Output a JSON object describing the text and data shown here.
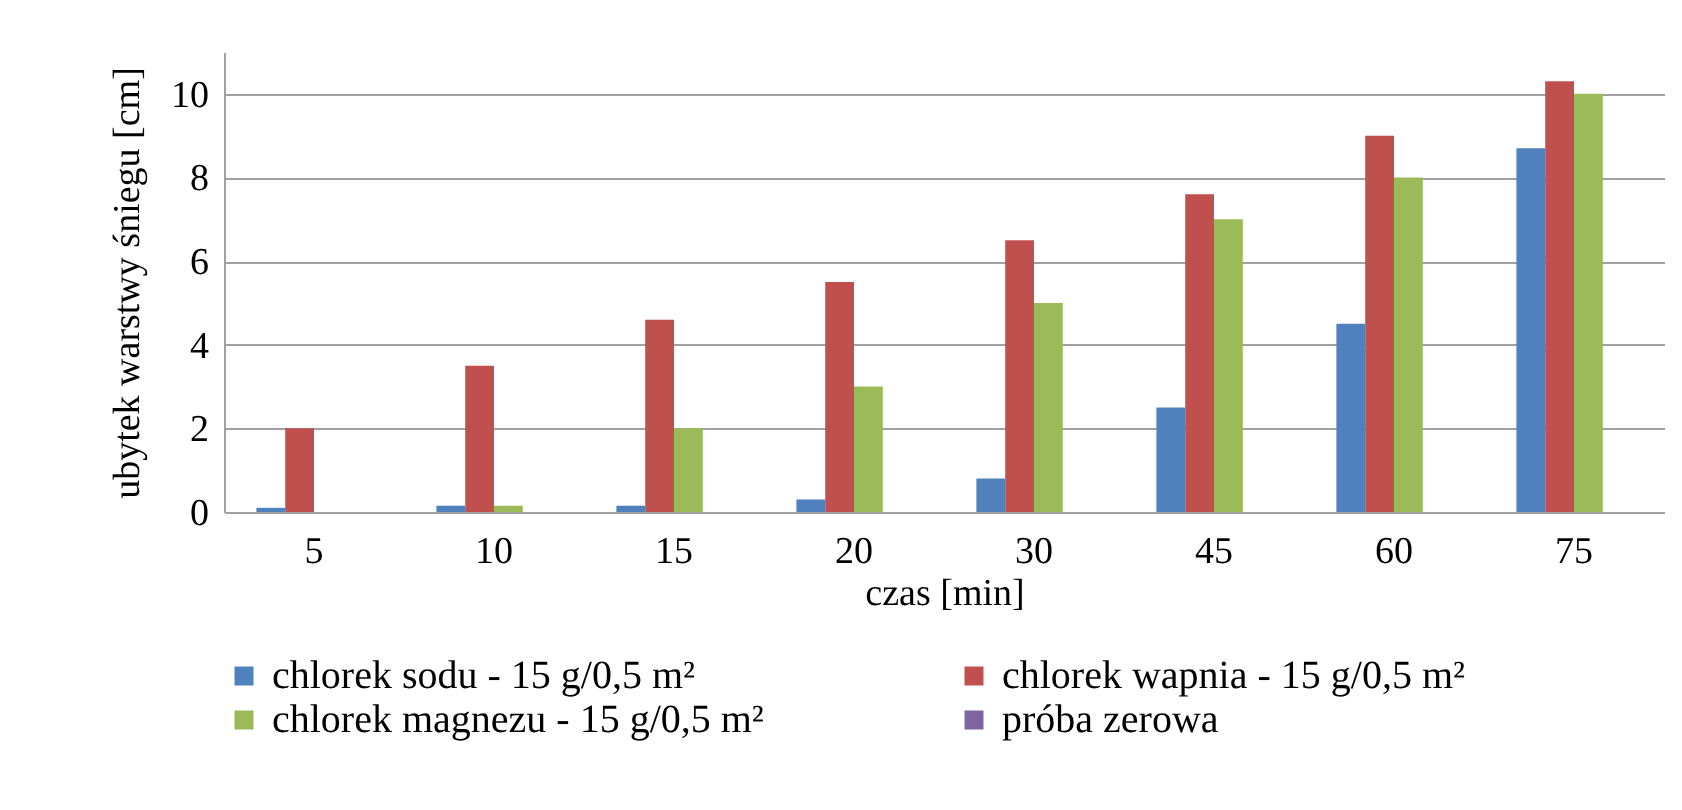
{
  "chart_data": {
    "type": "bar",
    "xlabel": "czas [min]",
    "ylabel": "ubytek  warstwy śniegu [cm]",
    "categories": [
      "5",
      "10",
      "15",
      "20",
      "30",
      "45",
      "60",
      "75"
    ],
    "series": [
      {
        "name": "chlorek sodu - 15 g/0,5 m²",
        "color": "#4f81bd",
        "values": [
          0.1,
          0.15,
          0.15,
          0.3,
          0.8,
          2.5,
          4.5,
          8.7
        ]
      },
      {
        "name": "chlorek wapnia - 15 g/0,5 m²",
        "color": "#c0504d",
        "values": [
          2,
          3.5,
          4.6,
          5.5,
          6.5,
          7.6,
          9,
          10.3
        ]
      },
      {
        "name": "chlorek magnezu - 15 g/0,5 m²",
        "color": "#9bbb59",
        "values": [
          0,
          0.15,
          2,
          3,
          5,
          7,
          8,
          10
        ]
      },
      {
        "name": "próba zerowa",
        "color": "#8064a2",
        "values": [
          0,
          0,
          0,
          0,
          0,
          0,
          0,
          0
        ]
      }
    ],
    "ylim": [
      0,
      11
    ],
    "yticks": [
      0,
      2,
      4,
      6,
      8,
      10
    ],
    "grid": "y",
    "legend": "bottom"
  }
}
